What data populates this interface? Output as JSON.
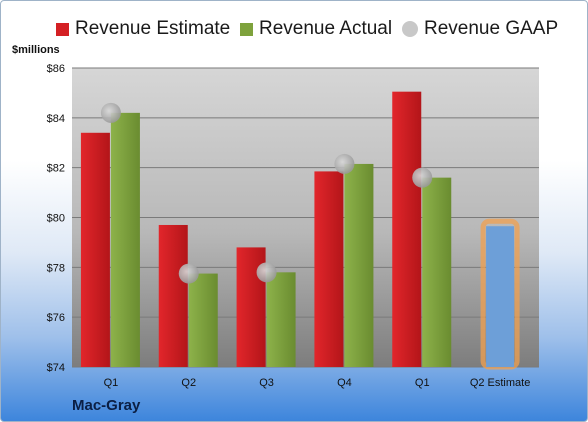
{
  "legend": {
    "items": [
      {
        "label": "Revenue Estimate",
        "color": "#d42024",
        "shape": "square"
      },
      {
        "label": "Revenue Actual",
        "color": "#7ea23c",
        "shape": "square"
      },
      {
        "label": "Revenue GAAP",
        "color": "#bdbdbd",
        "shape": "circle"
      }
    ]
  },
  "axis_unit_label": "$millions",
  "company": "Mac-Gray",
  "chart_data": {
    "type": "bar",
    "categories": [
      "Q1",
      "Q2",
      "Q3",
      "Q4",
      "Q1",
      "Q2 Estimate"
    ],
    "series": [
      {
        "name": "Revenue Estimate",
        "color": "#d42024",
        "values": [
          83.4,
          79.7,
          78.8,
          81.85,
          85.05,
          null
        ]
      },
      {
        "name": "Revenue Actual",
        "color": "#7ea23c",
        "values": [
          84.2,
          77.75,
          77.8,
          82.15,
          81.6,
          null
        ]
      },
      {
        "name": "Revenue GAAP",
        "color": "#bdbdbd",
        "marker": "circle",
        "values": [
          84.2,
          77.75,
          77.8,
          82.15,
          81.6,
          null
        ]
      }
    ],
    "forecast": {
      "category": "Q2 Estimate",
      "value": 79.65,
      "color": "#6d9fd8",
      "outline": "#f0a050"
    },
    "ylim": [
      74,
      86
    ],
    "yticks": [
      "$74",
      "$76",
      "$78",
      "$80",
      "$82",
      "$84",
      "$86"
    ],
    "ytick_values": [
      74,
      76,
      78,
      80,
      82,
      84,
      86
    ],
    "ylabel": "$millions",
    "grid": true,
    "legend_position": "top"
  }
}
